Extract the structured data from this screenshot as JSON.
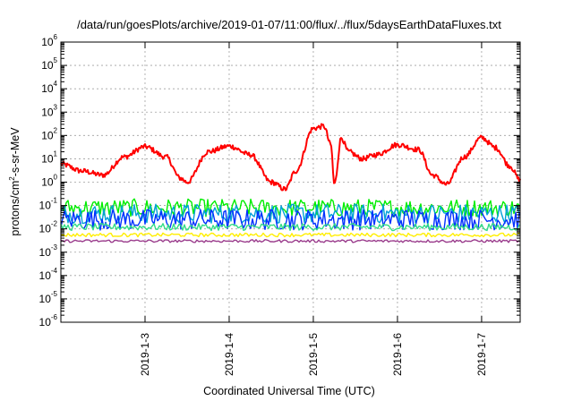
{
  "chart_data": {
    "type": "line",
    "title": "/data/run/goesPlots/archive/2019-01-07/11:00/flux/../flux/5daysEarthDataFluxes.txt",
    "xlabel": "Coordinated Universal Time (UTC)",
    "ylabel": "protons/cm²-s-sr-MeV",
    "ylabel_parts": {
      "a": "protons/cm",
      "b": "2",
      "c": "-s-sr-MeV"
    },
    "y_scale": "log",
    "ylim": [
      1e-06,
      1000000.0
    ],
    "y_ticks": [
      {
        "base": "10",
        "exp": "-6",
        "value": 1e-06
      },
      {
        "base": "10",
        "exp": "-5",
        "value": 1e-05
      },
      {
        "base": "10",
        "exp": "-4",
        "value": 0.0001
      },
      {
        "base": "10",
        "exp": "-3",
        "value": 0.001
      },
      {
        "base": "10",
        "exp": "-2",
        "value": 0.01
      },
      {
        "base": "10",
        "exp": "-1",
        "value": 0.1
      },
      {
        "base": "10",
        "exp": "0",
        "value": 1
      },
      {
        "base": "10",
        "exp": "1",
        "value": 10
      },
      {
        "base": "10",
        "exp": "2",
        "value": 100
      },
      {
        "base": "10",
        "exp": "3",
        "value": 1000
      },
      {
        "base": "10",
        "exp": "4",
        "value": 10000
      },
      {
        "base": "10",
        "exp": "5",
        "value": 100000
      },
      {
        "base": "10",
        "exp": "6",
        "value": 1000000
      }
    ],
    "xlim": [
      "2019-01-02T00:00",
      "2019-01-07T11:00"
    ],
    "x_ticks": [
      {
        "label": "2019-1-3",
        "value": "2019-01-03"
      },
      {
        "label": "2019-1-4",
        "value": "2019-01-04"
      },
      {
        "label": "2019-1-5",
        "value": "2019-01-05"
      },
      {
        "label": "2019-1-6",
        "value": "2019-01-06"
      },
      {
        "label": "2019-1-7",
        "value": "2019-01-07"
      }
    ],
    "grid": true,
    "series": [
      {
        "color": "#ff0000",
        "style": "smooth",
        "x": [
          "2019-01-02T00:00",
          "2019-01-02T06:00",
          "2019-01-02T12:00",
          "2019-01-02T18:00",
          "2019-01-03T00:00",
          "2019-01-03T06:00",
          "2019-01-03T10:00",
          "2019-01-03T12:00",
          "2019-01-03T18:00",
          "2019-01-04T00:00",
          "2019-01-04T06:00",
          "2019-01-04T12:00",
          "2019-01-04T16:00",
          "2019-01-04T19:00",
          "2019-01-05T00:00",
          "2019-01-05T03:00",
          "2019-01-05T05:00",
          "2019-01-05T06:00",
          "2019-01-05T08:00",
          "2019-01-05T10:00",
          "2019-01-05T14:00",
          "2019-01-05T18:00",
          "2019-01-06T00:00",
          "2019-01-06T06:00",
          "2019-01-06T10:00",
          "2019-01-06T14:00",
          "2019-01-06T19:00",
          "2019-01-07T00:00",
          "2019-01-07T04:00",
          "2019-01-07T08:00",
          "2019-01-07T11:00"
        ],
        "values": [
          6,
          3,
          2,
          12,
          33,
          12,
          1.5,
          1.0,
          20,
          35,
          15,
          1.0,
          0.5,
          3,
          200,
          250,
          40,
          0.8,
          80,
          20,
          10,
          15,
          40,
          25,
          2,
          0.8,
          12,
          80,
          30,
          5,
          1.2
        ]
      },
      {
        "color": "#00ee00",
        "style": "noisy",
        "level": 0.08,
        "spread": 0.38
      },
      {
        "color": "#00a0d8",
        "style": "noisy",
        "level": 0.045,
        "spread": 0.42
      },
      {
        "color": "#0030ff",
        "style": "noisy",
        "level": 0.025,
        "spread": 0.45
      },
      {
        "color": "#33dd88",
        "style": "noisy",
        "level": 0.012,
        "spread": 0.15
      },
      {
        "color": "#ffee00",
        "style": "noisy",
        "level": 0.0055,
        "spread": 0.08
      },
      {
        "color": "#9a3c8c",
        "style": "noisy",
        "level": 0.003,
        "spread": 0.06
      }
    ]
  }
}
